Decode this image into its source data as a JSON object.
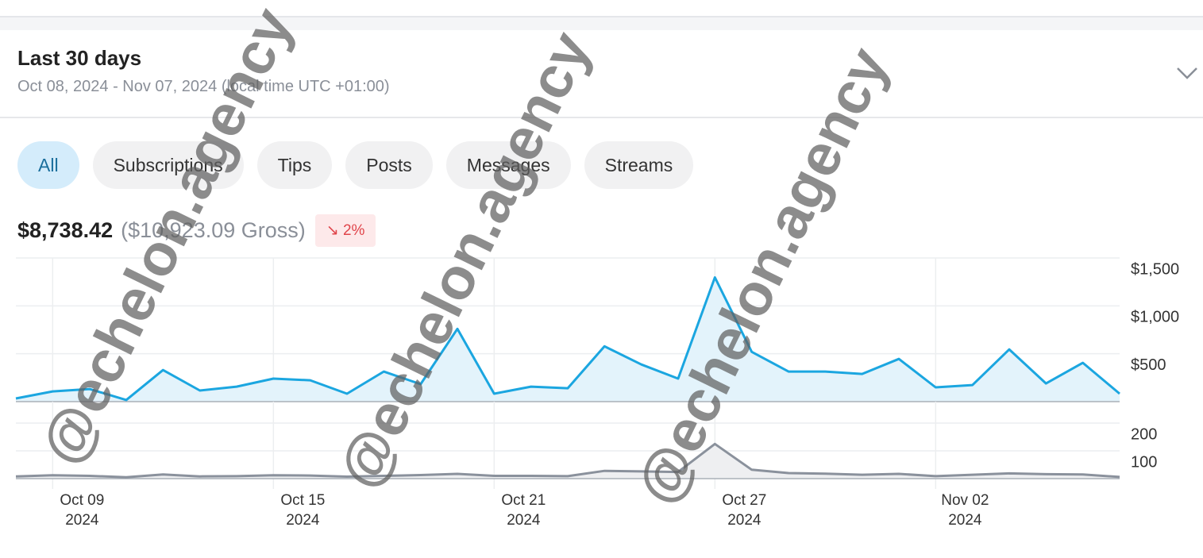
{
  "header": {
    "title": "Last 30 days",
    "date_range": "Oct 08, 2024 - Nov 07, 2024 (local time UTC +01:00)"
  },
  "tabs": [
    "All",
    "Subscriptions",
    "Tips",
    "Posts",
    "Messages",
    "Streams"
  ],
  "active_tab": 0,
  "summary": {
    "net": "$8,738.42",
    "gross": "($10,923.09 Gross)",
    "change_icon": "↘",
    "change": "2%"
  },
  "watermark": "@echelon.agency",
  "chart_data": [
    {
      "type": "area",
      "x": [
        "2024-10-08",
        "2024-10-09",
        "2024-10-10",
        "2024-10-11",
        "2024-10-12",
        "2024-10-13",
        "2024-10-14",
        "2024-10-15",
        "2024-10-16",
        "2024-10-17",
        "2024-10-18",
        "2024-10-19",
        "2024-10-20",
        "2024-10-21",
        "2024-10-22",
        "2024-10-23",
        "2024-10-24",
        "2024-10-25",
        "2024-10-26",
        "2024-10-27",
        "2024-10-28",
        "2024-10-29",
        "2024-10-30",
        "2024-10-31",
        "2024-11-01",
        "2024-11-02",
        "2024-11-03",
        "2024-11-04",
        "2024-11-05",
        "2024-11-06",
        "2024-11-07"
      ],
      "values": [
        33,
        107,
        132,
        17,
        330,
        116,
        157,
        240,
        223,
        83,
        314,
        182,
        760,
        83,
        157,
        140,
        578,
        388,
        240,
        1297,
        520,
        314,
        314,
        289,
        446,
        149,
        173,
        545,
        190,
        405,
        83
      ],
      "color": "#1ba6e0",
      "fill": "#e3f3fb",
      "ylim": [
        0,
        1500
      ],
      "yticks": [
        {
          "value": 500,
          "label": "$500"
        },
        {
          "value": 1000,
          "label": "$1,000"
        },
        {
          "value": 1500,
          "label": "$1,500"
        }
      ],
      "xticks": [
        "2024-10-09",
        "2024-10-15",
        "2024-10-21",
        "2024-10-27",
        "2024-11-02"
      ],
      "grid": true
    },
    {
      "type": "area",
      "x": [
        "2024-10-08",
        "2024-10-09",
        "2024-10-10",
        "2024-10-11",
        "2024-10-12",
        "2024-10-13",
        "2024-10-14",
        "2024-10-15",
        "2024-10-16",
        "2024-10-17",
        "2024-10-18",
        "2024-10-19",
        "2024-10-20",
        "2024-10-21",
        "2024-10-22",
        "2024-10-23",
        "2024-10-24",
        "2024-10-25",
        "2024-10-26",
        "2024-10-27",
        "2024-10-28",
        "2024-10-29",
        "2024-10-30",
        "2024-10-31",
        "2024-11-01",
        "2024-11-02",
        "2024-11-03",
        "2024-11-04",
        "2024-11-05",
        "2024-11-06",
        "2024-11-07"
      ],
      "values": [
        8,
        12,
        10,
        5,
        15,
        8,
        9,
        12,
        11,
        7,
        10,
        13,
        17,
        10,
        10,
        9,
        28,
        26,
        24,
        125,
        32,
        20,
        18,
        14,
        17,
        9,
        14,
        19,
        16,
        15,
        6
      ],
      "color": "#8a919c",
      "fill": "#eeeff1",
      "ylim": [
        0,
        200
      ],
      "yticks": [
        100,
        200
      ],
      "xticks": [
        {
          "value": "2024-10-09",
          "label": "Oct 09",
          "year": "2024"
        },
        {
          "value": "2024-10-15",
          "label": "Oct 15",
          "year": "2024"
        },
        {
          "value": "2024-10-21",
          "label": "Oct 21",
          "year": "2024"
        },
        {
          "value": "2024-10-27",
          "label": "Oct 27",
          "year": "2024"
        },
        {
          "value": "2024-11-02",
          "label": "Nov 02",
          "year": "2024"
        }
      ],
      "grid": true
    }
  ]
}
